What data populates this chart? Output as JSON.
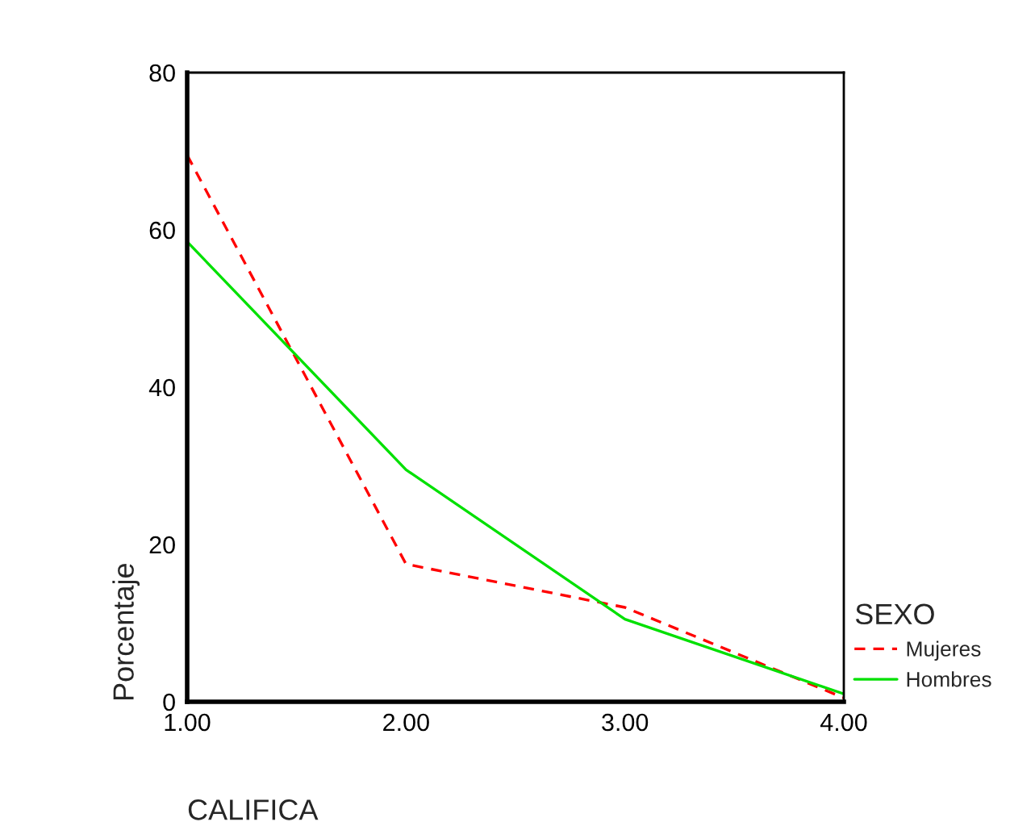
{
  "chart_data": {
    "type": "line",
    "xlabel": "CALIFICA",
    "ylabel": "Porcentaje",
    "legend_title": "SEXO",
    "x": [
      1,
      2,
      3,
      4
    ],
    "series": [
      {
        "name": "Mujeres",
        "color": "#ff0000",
        "line_style": "dashed",
        "values": [
          69.5,
          17.5,
          12,
          0.5
        ]
      },
      {
        "name": "Hombres",
        "color": "#00e000",
        "line_style": "solid",
        "values": [
          58.5,
          29.5,
          10.5,
          1
        ]
      }
    ],
    "xlim": [
      1,
      4
    ],
    "xticks": [
      {
        "value": 1,
        "label": "1.00"
      },
      {
        "value": 2,
        "label": "2.00"
      },
      {
        "value": 3,
        "label": "3.00"
      },
      {
        "value": 4,
        "label": "4.00"
      }
    ],
    "ylim": [
      0,
      80
    ],
    "yticks": [
      0,
      20,
      40,
      60,
      80
    ],
    "grid": false,
    "legend": "right",
    "marker": "none"
  }
}
